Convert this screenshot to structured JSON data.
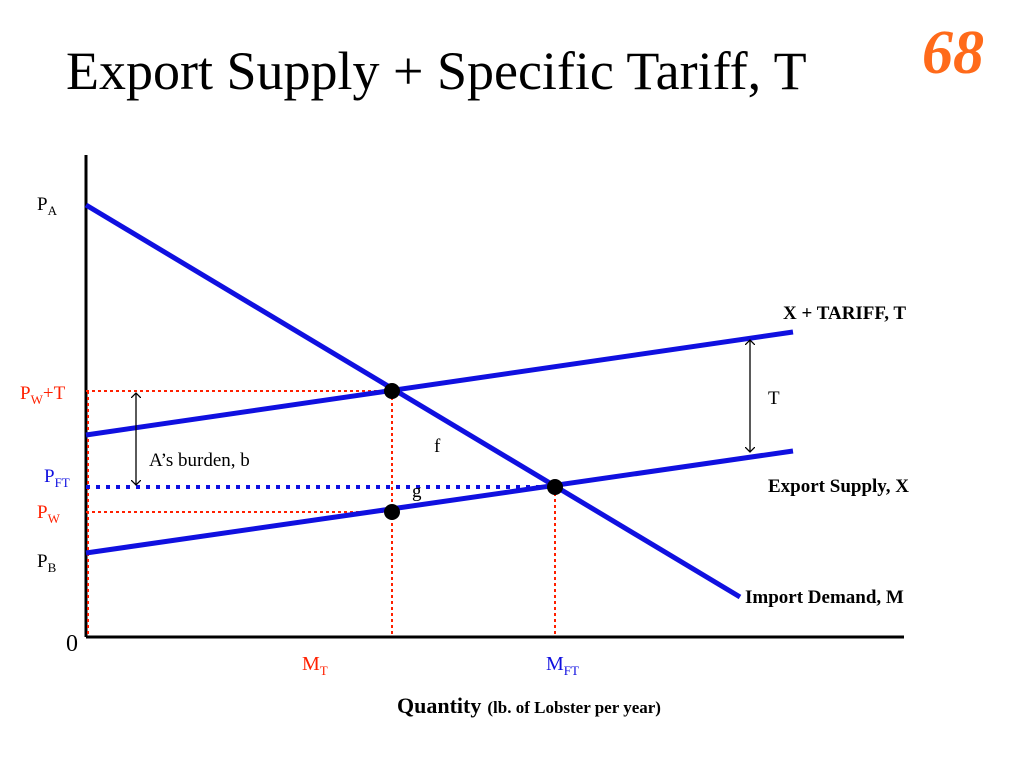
{
  "slide": {
    "title": "Export Supply + Specific Tariff, T",
    "number": "68"
  },
  "colors": {
    "curve": "#1010e0",
    "guide_red": "#ff2000",
    "guide_blue": "#1010e0",
    "axis": "#000000",
    "number": "#ff6a1a"
  },
  "labels": {
    "pa": {
      "main": "P",
      "sub": "A"
    },
    "pw_t": {
      "main": "P",
      "sub": "W",
      "tail": "+T"
    },
    "pft": {
      "main": "P",
      "sub": "FT"
    },
    "pw": {
      "main": "P",
      "sub": "W"
    },
    "pb": {
      "main": "P",
      "sub": "B"
    },
    "origin": "0",
    "mt": {
      "main": "M",
      "sub": "T"
    },
    "mft": {
      "main": "M",
      "sub": "FT"
    },
    "x_tariff": "X + TARIFF, T",
    "t_gap": "T",
    "export_supply": "Export Supply, X",
    "import_demand": "Import Demand, M",
    "burden": "A’s burden, b",
    "area_f": "f",
    "area_g": "g",
    "x_axis_main": "Quantity",
    "x_axis_sub": "(lb. of Lobster per year)"
  }
}
